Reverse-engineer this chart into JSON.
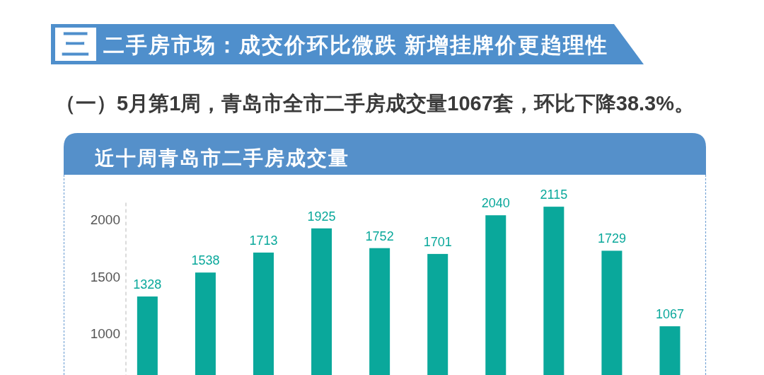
{
  "chart_data": {
    "type": "bar",
    "title": "近十周青岛市二手房成交量",
    "annotations": [
      "三",
      "二手房市场：成交价环比微跌 新增挂牌价更趋理性",
      "（一）5月第1周，青岛市全市二手房成交量1067套，环比下降38.3%。"
    ],
    "categories": [
      null,
      null,
      null,
      null,
      null,
      null,
      null,
      null,
      null,
      null
    ],
    "values": [
      1328,
      1538,
      1713,
      1925,
      1752,
      1701,
      2040,
      2115,
      1729,
      1067
    ],
    "color": "#0aa89b",
    "ylim": [
      640,
      2150
    ],
    "yticks": [
      1000,
      1500,
      2000
    ],
    "data_labels": true
  }
}
